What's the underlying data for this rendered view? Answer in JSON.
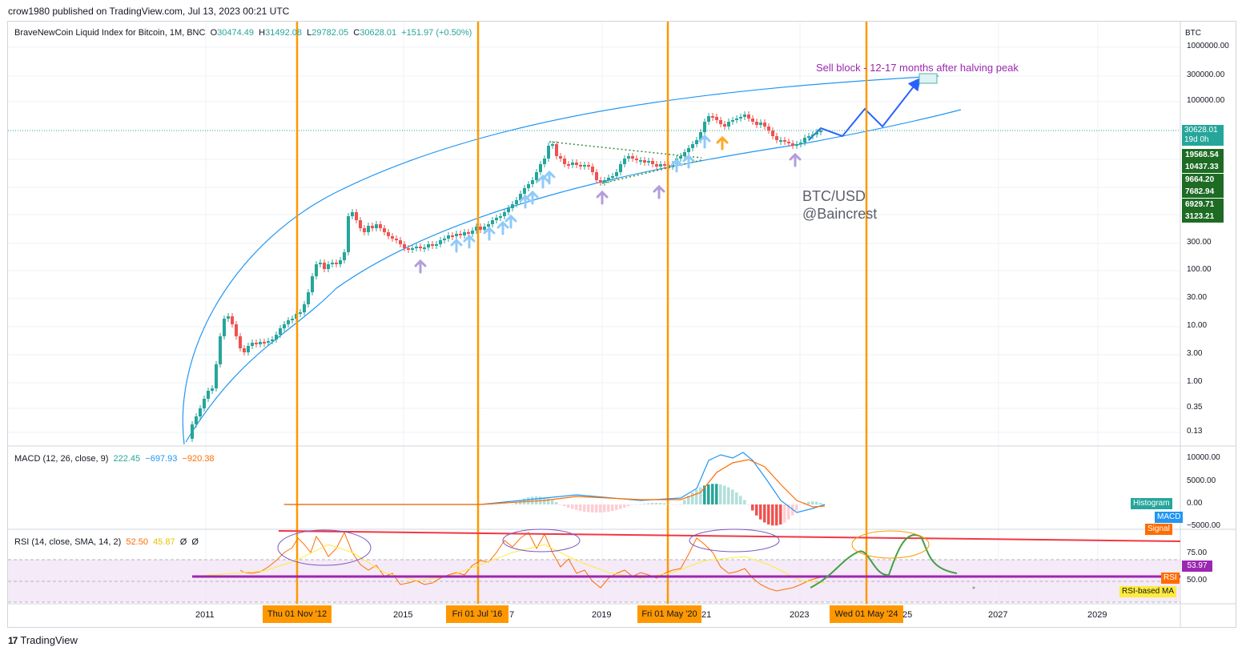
{
  "header": {
    "caption": "crow1980 published on TradingView.com, Jul 13, 2023 00:21 UTC"
  },
  "ohlc": {
    "symbol": "BraveNewCoin Liquid Index for Bitcoin, 1M, BNC",
    "o_label": "O",
    "o": "30474.49",
    "h_label": "H",
    "h": "31492.08",
    "l_label": "L",
    "l": "29782.05",
    "c_label": "C",
    "c": "30628.01",
    "change": "+151.97 (+0.50%)"
  },
  "price_axis": {
    "currency": "BTC",
    "ticks": [
      "1000000.00",
      "300000.00",
      "100000.00",
      "300.00",
      "100.00",
      "30.00",
      "10.00",
      "3.00",
      "1.00",
      "0.35",
      "0.13"
    ],
    "last_price": "30628.01",
    "countdown": "19d 0h",
    "level_labels": [
      "19568.54",
      "10437.33",
      "9664.20",
      "7682.94",
      "6929.71",
      "3123.21"
    ]
  },
  "macd": {
    "title": "MACD (12, 26, close, 9)",
    "val1": "222.45",
    "val2": "−697.93",
    "val3": "−920.38",
    "ticks": [
      "10000.00",
      "5000.00",
      "0.00",
      "−5000.00"
    ],
    "tags": [
      "Histogram",
      "MACD",
      "Signal"
    ]
  },
  "rsi": {
    "title": "RSI (14, close, SMA, 14, 2)",
    "val1": "52.50",
    "val2": "45.87",
    "val3": "Ø",
    "val4": "Ø",
    "ticks": [
      "75.00",
      "50.00"
    ],
    "current": "53.97",
    "tags": [
      "RSI",
      "RSI-based MA"
    ]
  },
  "time_axis": {
    "years": [
      "2011",
      "2015",
      "2019",
      "2023",
      "2027",
      "2029"
    ],
    "partial_labels": [
      "7",
      "21",
      "25"
    ],
    "markers": [
      "Thu 01 Nov '12",
      "Fri 01 Jul '16",
      "Fri 01 May '20",
      "Wed 01 May '24"
    ]
  },
  "annotations": {
    "sell_block": "Sell block - 12-17 months after halving peak",
    "watermark_line1": "BTC/USD",
    "watermark_line2": "@Baincrest"
  },
  "footer": {
    "logo": "17",
    "brand": "TradingView"
  },
  "colors": {
    "up": "#26a69a",
    "down": "#ef5350",
    "halving": "#ff9800",
    "channel": "#2196f3",
    "macd": "#2196f3",
    "signal": "#ff6d00",
    "rsi": "#ff6d00",
    "rsi_ma": "#ffeb3b",
    "rsi_band": "#f3e5f5",
    "support": "#9c27b0",
    "resistance": "#f23645",
    "green_path": "#43a047"
  },
  "chart_data": {
    "type": "candlestick",
    "scale": "log",
    "approx_yearly_close": {
      "x": [
        "2011",
        "2012",
        "2013",
        "2014",
        "2015",
        "2016",
        "2017",
        "2018",
        "2019",
        "2020",
        "2021",
        "2022",
        "2023"
      ],
      "y": [
        4.7,
        13.5,
        750,
        320,
        430,
        960,
        14000,
        3700,
        7200,
        29000,
        46000,
        16500,
        30628
      ]
    },
    "halvings": [
      "Thu 01 Nov '12",
      "Fri 01 Jul '16",
      "Fri 01 May '20",
      "Wed 01 May '24"
    ]
  }
}
